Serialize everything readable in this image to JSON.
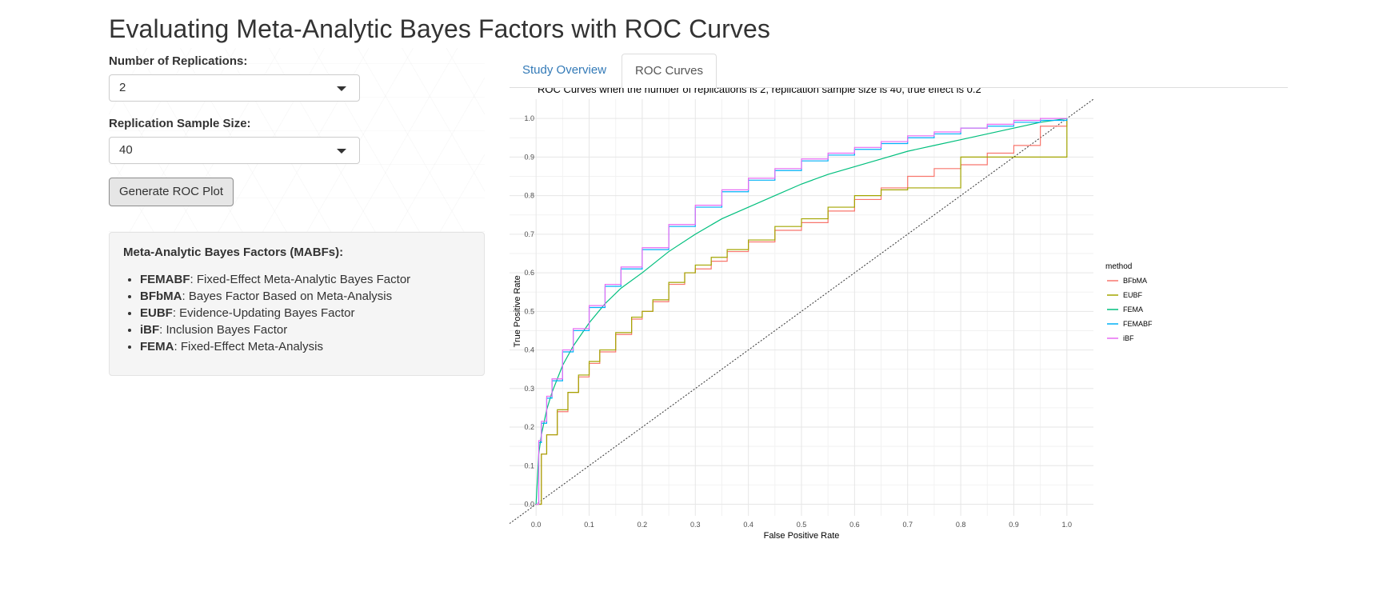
{
  "page": {
    "title": "Evaluating Meta-Analytic Bayes Factors with ROC Curves"
  },
  "controls": {
    "replications_label": "Number of Replications:",
    "replications_value": "2",
    "sample_size_label": "Replication Sample Size:",
    "sample_size_value": "40",
    "generate_button": "Generate ROC Plot"
  },
  "info": {
    "title": "Meta-Analytic Bayes Factors (MABFs):",
    "items": [
      {
        "abbr": "FEMABF",
        "desc": ": Fixed-Effect Meta-Analytic Bayes Factor"
      },
      {
        "abbr": "BFbMA",
        "desc": ": Bayes Factor Based on Meta-Analysis"
      },
      {
        "abbr": "EUBF",
        "desc": ": Evidence-Updating Bayes Factor"
      },
      {
        "abbr": "iBF",
        "desc": ": Inclusion Bayes Factor"
      },
      {
        "abbr": "FEMA",
        "desc": ": Fixed-Effect Meta-Analysis"
      }
    ]
  },
  "tabs": [
    {
      "label": "Study Overview",
      "active": false
    },
    {
      "label": "ROC Curves",
      "active": true
    }
  ],
  "chart_data": {
    "type": "line",
    "title": "ROC Curves when the number of replications is 2, replication sample size is 40, true effect is 0.2",
    "xlabel": "False Positive Rate",
    "ylabel": "True Positive Rate",
    "xlim": [
      0,
      1
    ],
    "ylim": [
      0,
      1
    ],
    "xticks": [
      "0.0",
      "0.1",
      "0.2",
      "0.3",
      "0.4",
      "0.5",
      "0.6",
      "0.7",
      "0.8",
      "0.9",
      "1.0"
    ],
    "yticks": [
      "0.0",
      "0.1",
      "0.2",
      "0.3",
      "0.4",
      "0.5",
      "0.6",
      "0.7",
      "0.8",
      "0.9",
      "1.0"
    ],
    "grid": true,
    "diagonal_reference": true,
    "legend_title": "method",
    "legend_position": "right",
    "series": [
      {
        "name": "BFbMA",
        "color": "#F8766D",
        "step": true,
        "x": [
          0,
          0.01,
          0.02,
          0.04,
          0.06,
          0.08,
          0.1,
          0.12,
          0.15,
          0.18,
          0.2,
          0.22,
          0.25,
          0.28,
          0.3,
          0.33,
          0.36,
          0.4,
          0.45,
          0.5,
          0.55,
          0.6,
          0.65,
          0.7,
          0.75,
          0.8,
          0.85,
          0.9,
          0.95,
          1.0
        ],
        "y": [
          0,
          0.13,
          0.18,
          0.24,
          0.29,
          0.33,
          0.365,
          0.395,
          0.44,
          0.48,
          0.5,
          0.525,
          0.57,
          0.6,
          0.61,
          0.63,
          0.655,
          0.68,
          0.71,
          0.73,
          0.76,
          0.79,
          0.82,
          0.85,
          0.87,
          0.88,
          0.91,
          0.93,
          0.98,
          1.0
        ]
      },
      {
        "name": "EUBF",
        "color": "#A3A500",
        "step": true,
        "x": [
          0,
          0.01,
          0.02,
          0.04,
          0.06,
          0.08,
          0.1,
          0.12,
          0.15,
          0.18,
          0.2,
          0.22,
          0.25,
          0.28,
          0.3,
          0.33,
          0.36,
          0.4,
          0.45,
          0.5,
          0.55,
          0.6,
          0.65,
          0.7,
          0.75,
          0.78,
          0.8,
          0.9,
          1.0,
          1.0
        ],
        "y": [
          0,
          0.13,
          0.18,
          0.245,
          0.29,
          0.335,
          0.37,
          0.4,
          0.445,
          0.485,
          0.5,
          0.53,
          0.575,
          0.6,
          0.62,
          0.64,
          0.66,
          0.685,
          0.72,
          0.74,
          0.77,
          0.8,
          0.815,
          0.82,
          0.82,
          0.82,
          0.9,
          0.9,
          0.9,
          1.0
        ]
      },
      {
        "name": "FEMA",
        "color": "#00BF7D",
        "step": false,
        "x": [
          0,
          0.005,
          0.01,
          0.02,
          0.03,
          0.05,
          0.07,
          0.1,
          0.13,
          0.16,
          0.2,
          0.25,
          0.3,
          0.35,
          0.4,
          0.45,
          0.5,
          0.55,
          0.6,
          0.65,
          0.7,
          0.75,
          0.8,
          0.85,
          0.9,
          0.95,
          1.0
        ],
        "y": [
          0,
          0.13,
          0.18,
          0.245,
          0.29,
          0.36,
          0.41,
          0.47,
          0.52,
          0.56,
          0.6,
          0.655,
          0.7,
          0.74,
          0.77,
          0.8,
          0.83,
          0.855,
          0.875,
          0.895,
          0.915,
          0.93,
          0.945,
          0.96,
          0.975,
          0.99,
          1.0
        ]
      },
      {
        "name": "FEMABF",
        "color": "#00B0F6",
        "step": true,
        "x": [
          0,
          0.005,
          0.01,
          0.02,
          0.03,
          0.05,
          0.07,
          0.1,
          0.13,
          0.16,
          0.2,
          0.25,
          0.3,
          0.35,
          0.4,
          0.45,
          0.5,
          0.55,
          0.6,
          0.65,
          0.7,
          0.75,
          0.8,
          0.85,
          0.9,
          0.95,
          1.0
        ],
        "y": [
          0,
          0.16,
          0.21,
          0.275,
          0.32,
          0.395,
          0.45,
          0.51,
          0.565,
          0.61,
          0.66,
          0.72,
          0.77,
          0.81,
          0.84,
          0.865,
          0.89,
          0.905,
          0.92,
          0.935,
          0.95,
          0.96,
          0.975,
          0.98,
          0.99,
          0.995,
          1.0
        ]
      },
      {
        "name": "iBF",
        "color": "#E76BF3",
        "step": true,
        "x": [
          0,
          0.005,
          0.01,
          0.02,
          0.03,
          0.05,
          0.07,
          0.1,
          0.13,
          0.16,
          0.2,
          0.25,
          0.3,
          0.35,
          0.4,
          0.45,
          0.5,
          0.55,
          0.6,
          0.65,
          0.7,
          0.75,
          0.8,
          0.85,
          0.9,
          0.95,
          1.0
        ],
        "y": [
          0,
          0.165,
          0.215,
          0.28,
          0.325,
          0.4,
          0.455,
          0.515,
          0.57,
          0.615,
          0.665,
          0.725,
          0.775,
          0.815,
          0.845,
          0.87,
          0.895,
          0.91,
          0.925,
          0.94,
          0.955,
          0.965,
          0.975,
          0.985,
          0.995,
          1.0,
          1.0
        ]
      }
    ]
  }
}
